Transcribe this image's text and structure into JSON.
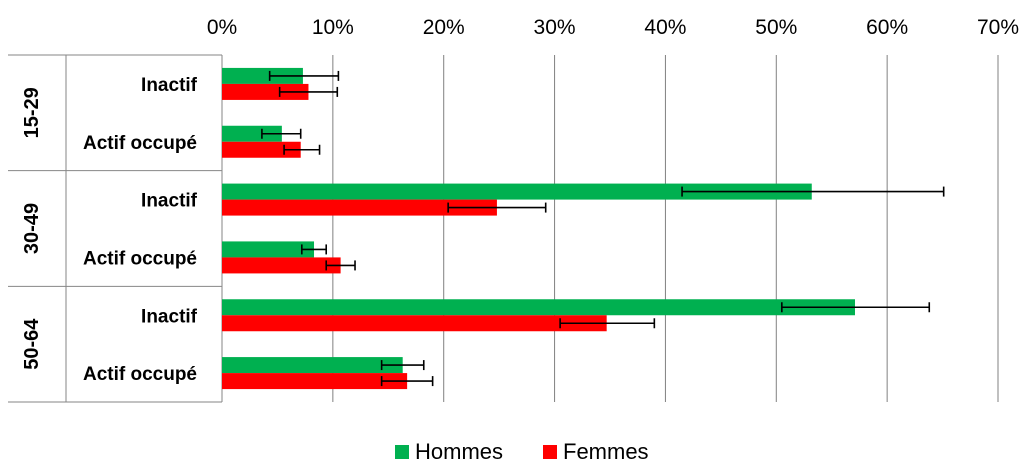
{
  "chart_data": {
    "type": "bar",
    "orientation": "horizontal",
    "title": "",
    "xlabel": "",
    "ylabel": "",
    "xlim": [
      0,
      70
    ],
    "x_ticks": [
      "0%",
      "10%",
      "20%",
      "30%",
      "40%",
      "50%",
      "60%",
      "70%"
    ],
    "grid": true,
    "legend_position": "bottom",
    "groups": [
      {
        "label": "15-29",
        "categories": [
          "Inactif",
          "Actif occupé"
        ]
      },
      {
        "label": "30-49",
        "categories": [
          "Inactif",
          "Actif occupé"
        ]
      },
      {
        "label": "50-64",
        "categories": [
          "Inactif",
          "Actif occupé"
        ]
      }
    ],
    "series": [
      {
        "name": "Hommes",
        "color": "#00b050",
        "values": [
          7.3,
          5.4,
          53.2,
          8.3,
          57.1,
          16.3
        ],
        "error_low": [
          4.3,
          3.6,
          41.5,
          7.2,
          50.5,
          14.4
        ],
        "error_high": [
          10.5,
          7.1,
          65.1,
          9.4,
          63.8,
          18.2
        ]
      },
      {
        "name": "Femmes",
        "color": "#ff0000",
        "values": [
          7.8,
          7.1,
          24.8,
          10.7,
          34.7,
          16.7
        ],
        "error_low": [
          5.2,
          5.6,
          20.4,
          9.4,
          30.5,
          14.4
        ],
        "error_high": [
          10.4,
          8.8,
          29.2,
          12.0,
          39.0,
          19.0
        ]
      }
    ]
  }
}
